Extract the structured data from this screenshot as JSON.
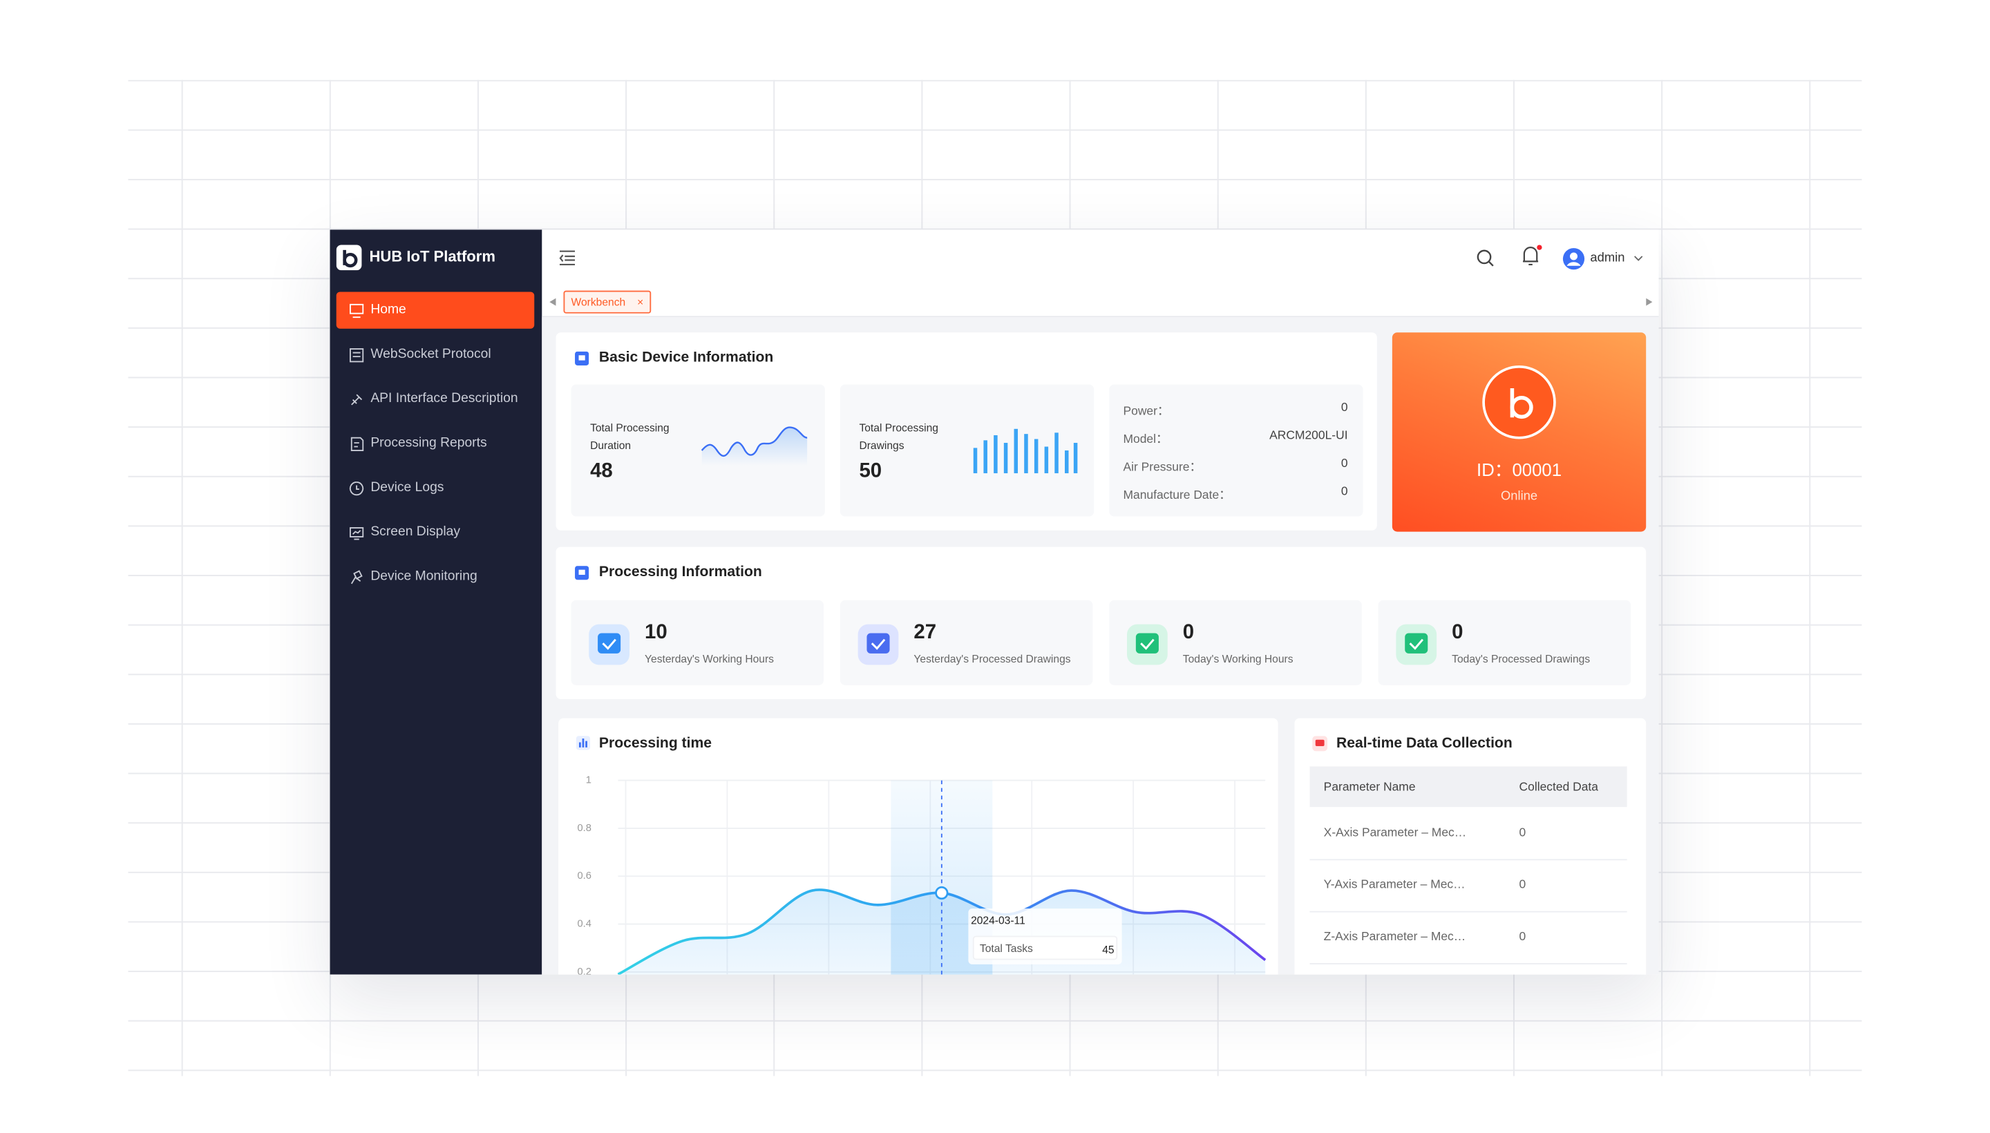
{
  "sidebar": {
    "brand": "HUB IoT Platform",
    "menu": [
      "Home",
      "WebSocket Protocol",
      "API Interface Description",
      "Processing Reports",
      "Device Logs",
      "Screen Display",
      "Device Monitoring"
    ]
  },
  "header": {
    "user": "admin"
  },
  "tabs": [
    "Workbench"
  ],
  "basic_info": {
    "title": "Basic Device Information",
    "stats": [
      {
        "label": "Total Processing Duration",
        "value": 48
      },
      {
        "label": "Total Processing Drawings",
        "value": 50
      }
    ],
    "fields": [
      {
        "label": "Power：",
        "value": "0"
      },
      {
        "label": "Model：",
        "value": "ARCM200L-UI"
      },
      {
        "label": "Air Pressure：",
        "value": "0"
      },
      {
        "label": "Manufacture Date：",
        "value": "0"
      }
    ]
  },
  "device": {
    "id": "ID：00001",
    "status": "Online"
  },
  "processing_info": {
    "title": "Processing Information",
    "stats": [
      {
        "value": 10,
        "label": "Yesterday's Working Hours"
      },
      {
        "value": 27,
        "label": "Yesterday's Processed Drawings"
      },
      {
        "value": 0,
        "label": "Today's Working Hours"
      },
      {
        "value": 0,
        "label": "Today's Processed Drawings"
      }
    ]
  },
  "chart_data": {
    "type": "line",
    "title": "Processing time",
    "values": [
      0.19,
      0.33,
      0.36,
      0.54,
      0.48,
      0.53,
      0.44,
      0.54,
      0.45,
      0.44,
      0.25
    ],
    "ylim": [
      0,
      1
    ],
    "yticks": [
      1,
      0.8,
      0.6,
      0.4,
      0.2
    ],
    "grid": true,
    "colors": [
      "#33d1e6",
      "#2f9df2",
      "#6a45ee"
    ],
    "tooltip": {
      "x": "2024-03-11",
      "label": "Total Tasks",
      "value": 45
    }
  },
  "realtime": {
    "title": "Real-time Data Collection",
    "columns": [
      "Parameter Name",
      "Collected Data"
    ],
    "rows": [
      [
        "X-Axis Parameter – Mec…",
        "0"
      ],
      [
        "Y-Axis Parameter – Mec…",
        "0"
      ],
      [
        "Z-Axis Parameter – Mec…",
        "0"
      ]
    ]
  }
}
